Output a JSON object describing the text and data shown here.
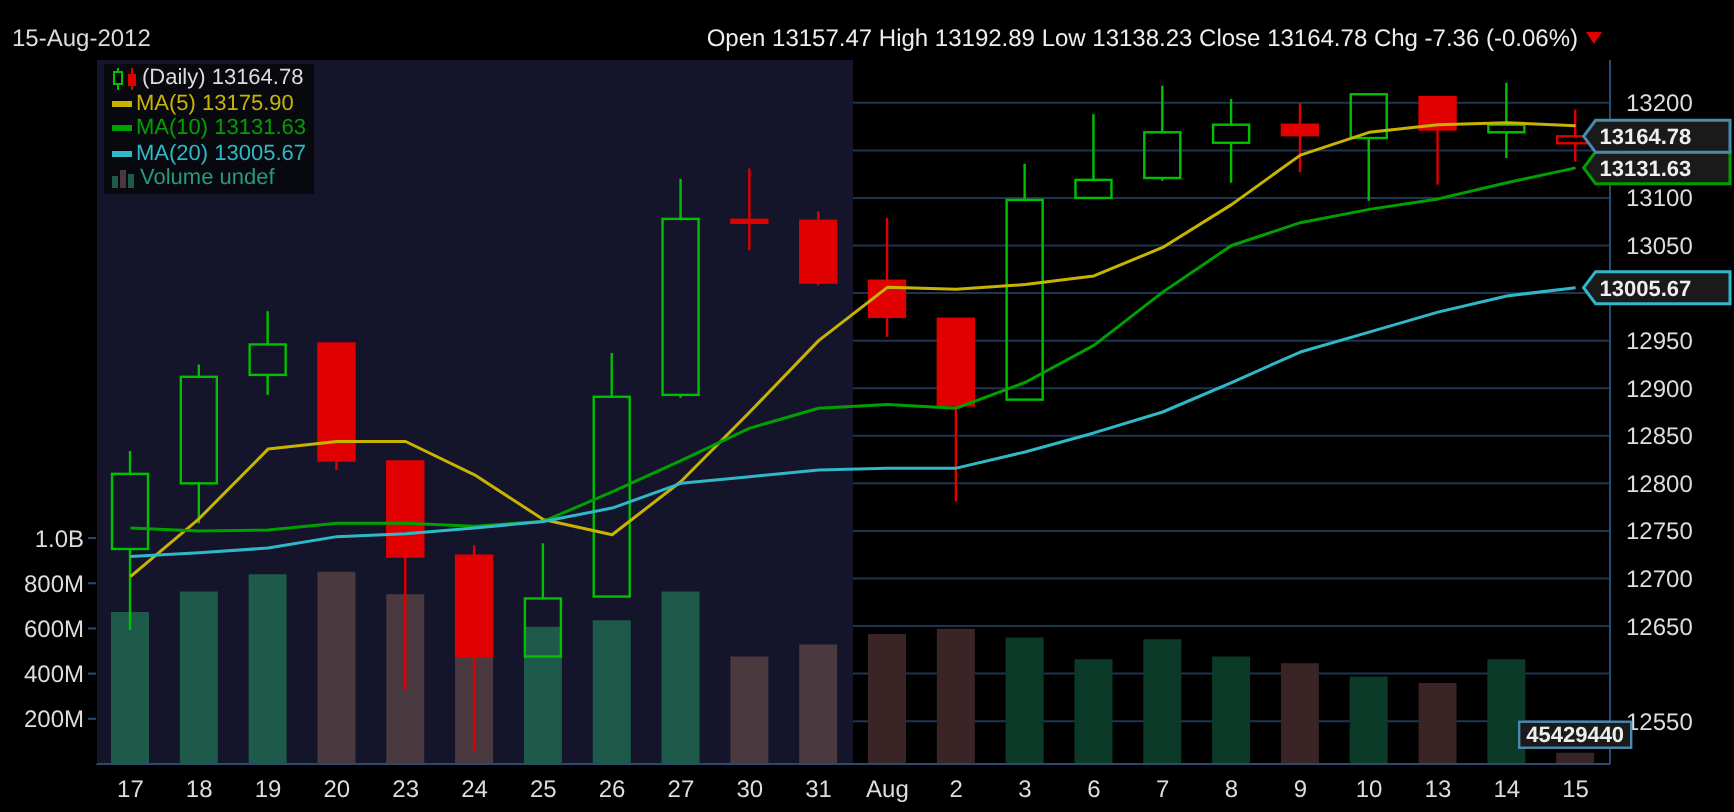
{
  "chart_data": {
    "type": "candlestick",
    "subtitle": "15-Aug-2012",
    "annotations": [
      "Open 13157.47 High 13192.89 Low 13138.23 Close 13164.78 Chg -7.36 (-0.06%)",
      {
        "text": "13164.78",
        "x": "15",
        "y": 13164.78
      }
    ],
    "categories": [
      "17",
      "18",
      "19",
      "20",
      "23",
      "24",
      "25",
      "26",
      "27",
      "30",
      "31",
      "Aug",
      "2",
      "3",
      "6",
      "7",
      "8",
      "9",
      "10",
      "13",
      "14",
      "15"
    ],
    "series": [
      {
        "name": "(Daily) 13164.78",
        "colors": [
          "#00c000",
          "#00c000",
          "#00c000",
          "#e00000",
          "#e00000",
          "#e00000",
          "#00c000",
          "#00c000",
          "#00c000",
          "#e00000",
          "#e00000",
          "#e00000",
          "#e00000",
          "#00c000",
          "#00c000",
          "#00c000",
          "#00c000",
          "#e00000",
          "#00c000",
          "#e00000",
          "#00c000",
          "#e00000"
        ],
        "ohlc": [
          [
            12731,
            12834,
            12646,
            12810
          ],
          [
            12800,
            12925,
            12758,
            12912
          ],
          [
            12914,
            12981,
            12893,
            12946
          ],
          [
            12947,
            12947,
            12814,
            12824
          ],
          [
            12823,
            12823,
            12583,
            12723
          ],
          [
            12724,
            12735,
            12518,
            12618
          ],
          [
            12618,
            12737,
            12618,
            12679
          ],
          [
            12681,
            12937,
            12681,
            12891
          ],
          [
            12893,
            13120,
            12890,
            13078
          ],
          [
            13077,
            13131,
            13045,
            13075
          ],
          [
            13076,
            13086,
            13008,
            13011
          ],
          [
            13013,
            13079,
            12954,
            12975
          ],
          [
            12973,
            12973,
            12781,
            12882
          ],
          [
            12888,
            13136,
            12888,
            13098
          ],
          [
            13100,
            13188,
            13100,
            13119
          ],
          [
            13121,
            13218,
            13118,
            13169
          ],
          [
            13158,
            13204,
            13116,
            13177
          ],
          [
            13177,
            13200,
            13127,
            13166
          ],
          [
            13163,
            13209,
            13097,
            13209
          ],
          [
            13206,
            13206,
            13114,
            13172
          ],
          [
            13169,
            13221,
            13142,
            13177
          ],
          [
            13157.47,
            13192.89,
            13138.23,
            13164.78
          ]
        ]
      },
      {
        "type": "line",
        "name": "MA(5) 13175.90",
        "color": "#c8b400",
        "values": [
          12702,
          12763,
          12836,
          12844,
          12844,
          12809,
          12762,
          12746,
          12802,
          12875,
          12950,
          13006,
          13004,
          13009,
          13018,
          13048,
          13093,
          13145,
          13169,
          13177,
          13179,
          13175.9
        ]
      },
      {
        "type": "line",
        "name": "MA(10) 13131.63",
        "color": "#00a000",
        "values": [
          12753,
          12750,
          12751,
          12758,
          12758,
          12755,
          12760,
          12791,
          12824,
          12858,
          12879,
          12883,
          12879,
          12906,
          12945,
          13001,
          13050,
          13074,
          13088,
          13099,
          13116,
          13131.63
        ],
        "value_labels": [
          null,
          null,
          null,
          null,
          null,
          null,
          null,
          null,
          null,
          null,
          null,
          null,
          null,
          null,
          null,
          null,
          null,
          null,
          null,
          null,
          null,
          "13131.63"
        ]
      },
      {
        "type": "line",
        "name": "MA(20) 13005.67",
        "color": "#30b8c8",
        "values": [
          12723,
          12727,
          12732,
          12744,
          12747,
          12753,
          12760,
          12774,
          12800,
          12807,
          12814,
          12816,
          12816,
          12833,
          12853,
          12875,
          12906,
          12938,
          12959,
          12980,
          12997,
          13005.67
        ],
        "value_labels": [
          null,
          null,
          null,
          null,
          null,
          null,
          null,
          null,
          null,
          null,
          null,
          null,
          null,
          null,
          null,
          null,
          null,
          null,
          null,
          null,
          null,
          "13005.67"
        ]
      },
      {
        "type": "bar",
        "name": "Volume undef",
        "axis": "y2",
        "colors": [
          "#1e5a4a",
          "#1e5a4a",
          "#1e5a4a",
          "#4a3a40",
          "#4a3a40",
          "#4a3a40",
          "#1e5a4a",
          "#1e5a4a",
          "#1e5a4a",
          "#4a3a40",
          "#4a3a40",
          "#3a2426",
          "#3a2426",
          "#0c3a28",
          "#0c3a28",
          "#0c3a28",
          "#0c3a28",
          "#3a2426",
          "#0c3a28",
          "#3a2426",
          "#0c3a28",
          "#3a2426"
        ],
        "values": [
          668000000,
          759000000,
          835000000,
          847000000,
          747000000,
          477000000,
          603000000,
          632000000,
          759000000,
          471000000,
          524000000,
          571000000,
          594000000,
          556000000,
          459000000,
          548000000,
          471000000,
          442000000,
          383000000,
          354000000,
          459000000,
          45429440
        ],
        "value_labels": [
          null,
          null,
          null,
          null,
          null,
          null,
          null,
          null,
          null,
          null,
          null,
          null,
          null,
          null,
          null,
          null,
          null,
          null,
          null,
          null,
          null,
          "45429440"
        ]
      }
    ],
    "ylim": [
      12505,
      13245
    ],
    "yticks": [
      12550,
      {
        "value": 12600,
        "label": null
      },
      12650,
      12700,
      12750,
      12800,
      12850,
      12900,
      12950,
      {
        "value": 13000,
        "label": null
      },
      13050,
      13100,
      {
        "value": 13150,
        "label": null
      },
      13200
    ],
    "y2lim": [
      0,
      3116000000
    ],
    "y2ticks": [
      {
        "value": 200000000,
        "label": "200M"
      },
      {
        "value": 400000000,
        "label": "400M"
      },
      {
        "value": 600000000,
        "label": "600M"
      },
      {
        "value": 800000000,
        "label": "800M"
      },
      {
        "value": 1000000000,
        "label": "1.0B"
      }
    ],
    "grid": "y",
    "legend": "top left",
    "marker": "none",
    "bands": [
      {
        "axis": "x",
        "from": "17",
        "to": "31",
        "color": "#14142a"
      }
    ]
  }
}
